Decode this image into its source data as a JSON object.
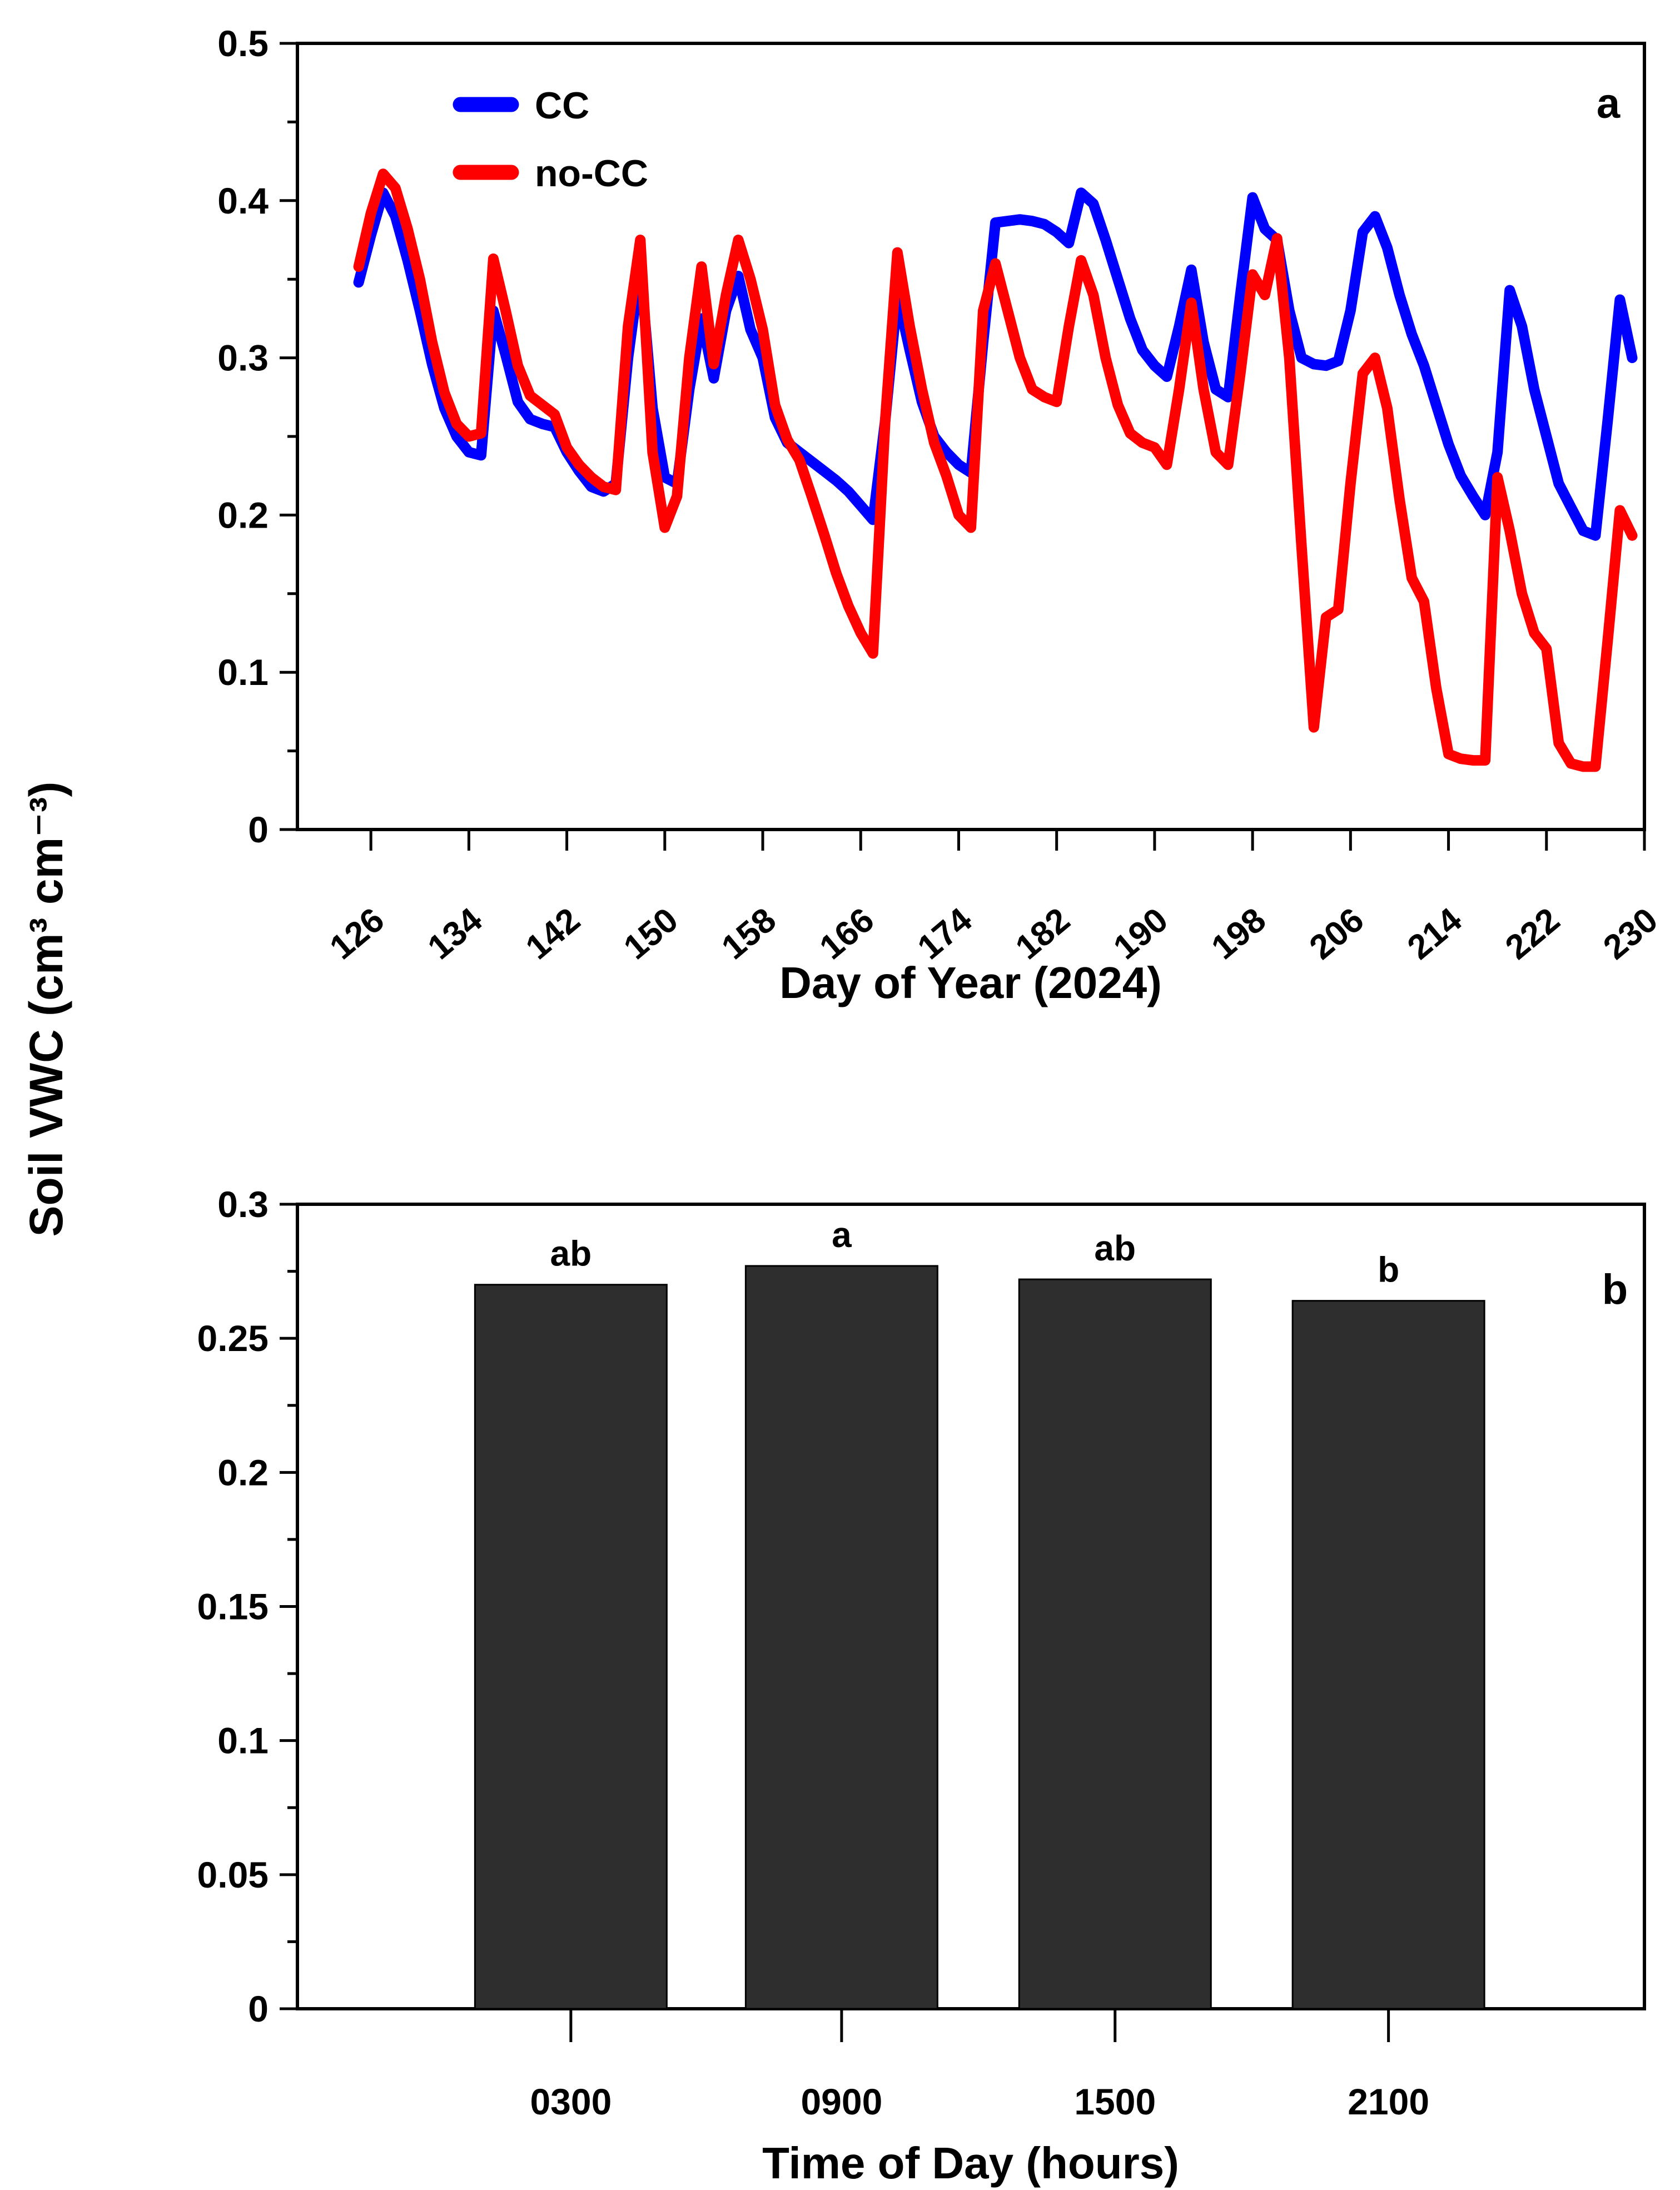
{
  "figure": {
    "background": "#ffffff",
    "axis_color": "#000000",
    "ylabel_shared": "Soil VWC (cm³ cm⁻³)"
  },
  "chart_data": [
    {
      "panel_label": "a",
      "type": "line",
      "xlabel": "Day of Year (2024)",
      "xlim": [
        120,
        230
      ],
      "ylim": [
        0,
        0.5
      ],
      "xticks": [
        126,
        134,
        142,
        150,
        158,
        166,
        174,
        182,
        190,
        198,
        206,
        214,
        222,
        230
      ],
      "ytick_values": [
        0,
        0.1,
        0.2,
        0.3,
        0.4,
        0.5
      ],
      "ytick_labels": [
        "0",
        "0.1",
        "0.2",
        "0.3",
        "0.4",
        "0.5"
      ],
      "yminor_step": 0.05,
      "legend_position": "top-left-inside",
      "series": [
        {
          "name": "CC",
          "color": "#0000ff",
          "x": [
            125,
            126,
            127,
            128,
            129,
            130,
            131,
            132,
            133,
            134,
            135,
            136,
            137,
            138,
            139,
            140,
            141,
            142,
            143,
            144,
            145,
            146,
            147,
            148,
            149,
            150,
            151,
            152,
            153,
            154,
            155,
            156,
            157,
            158,
            159,
            160,
            161,
            162,
            163,
            164,
            165,
            166,
            167,
            168,
            169,
            170,
            171,
            172,
            173,
            174,
            175,
            176,
            177,
            178,
            179,
            180,
            181,
            182,
            183,
            184,
            185,
            186,
            187,
            188,
            189,
            190,
            191,
            192,
            193,
            194,
            195,
            196,
            197,
            198,
            199,
            200,
            201,
            202,
            203,
            204,
            205,
            206,
            207,
            208,
            209,
            210,
            211,
            212,
            213,
            214,
            215,
            216,
            217,
            218,
            219,
            220,
            221,
            222,
            223,
            224,
            225,
            226,
            227,
            228,
            229
          ],
          "y": [
            0.348,
            0.378,
            0.405,
            0.39,
            0.362,
            0.33,
            0.296,
            0.268,
            0.25,
            0.24,
            0.238,
            0.33,
            0.302,
            0.272,
            0.261,
            0.258,
            0.256,
            0.24,
            0.228,
            0.218,
            0.215,
            0.22,
            0.3,
            0.358,
            0.268,
            0.224,
            0.22,
            0.28,
            0.325,
            0.287,
            0.33,
            0.352,
            0.318,
            0.3,
            0.262,
            0.246,
            0.24,
            0.234,
            0.228,
            0.222,
            0.215,
            0.206,
            0.197,
            0.26,
            0.34,
            0.305,
            0.272,
            0.25,
            0.24,
            0.232,
            0.227,
            0.31,
            0.386,
            0.387,
            0.388,
            0.387,
            0.385,
            0.38,
            0.373,
            0.405,
            0.398,
            0.375,
            0.35,
            0.325,
            0.305,
            0.295,
            0.288,
            0.32,
            0.356,
            0.31,
            0.28,
            0.275,
            0.34,
            0.402,
            0.382,
            0.375,
            0.33,
            0.3,
            0.296,
            0.295,
            0.298,
            0.33,
            0.38,
            0.39,
            0.37,
            0.34,
            0.315,
            0.295,
            0.27,
            0.245,
            0.225,
            0.212,
            0.2,
            0.24,
            0.343,
            0.32,
            0.28,
            0.25,
            0.22,
            0.205,
            0.19,
            0.187,
            0.26,
            0.337,
            0.3
          ]
        },
        {
          "name": "no-CC",
          "color": "#ff0000",
          "x": [
            125,
            126,
            127,
            128,
            129,
            130,
            131,
            132,
            133,
            134,
            135,
            136,
            137,
            138,
            139,
            140,
            141,
            142,
            143,
            144,
            145,
            146,
            147,
            148,
            149,
            150,
            151,
            152,
            153,
            154,
            155,
            156,
            157,
            158,
            159,
            160,
            161,
            162,
            163,
            164,
            165,
            166,
            167,
            168,
            169,
            170,
            171,
            172,
            173,
            174,
            175,
            176,
            177,
            178,
            179,
            180,
            181,
            182,
            183,
            184,
            185,
            186,
            187,
            188,
            189,
            190,
            191,
            192,
            193,
            194,
            195,
            196,
            197,
            198,
            199,
            200,
            201,
            202,
            203,
            204,
            205,
            206,
            207,
            208,
            209,
            210,
            211,
            212,
            213,
            214,
            215,
            216,
            217,
            218,
            219,
            220,
            221,
            222,
            223,
            224,
            225,
            226,
            227,
            228,
            229
          ],
          "y": [
            0.358,
            0.392,
            0.417,
            0.408,
            0.382,
            0.35,
            0.31,
            0.278,
            0.258,
            0.25,
            0.252,
            0.363,
            0.33,
            0.295,
            0.276,
            0.27,
            0.264,
            0.243,
            0.232,
            0.224,
            0.218,
            0.216,
            0.32,
            0.375,
            0.24,
            0.192,
            0.212,
            0.3,
            0.358,
            0.296,
            0.34,
            0.375,
            0.35,
            0.318,
            0.27,
            0.248,
            0.235,
            0.212,
            0.188,
            0.163,
            0.142,
            0.125,
            0.112,
            0.26,
            0.367,
            0.32,
            0.28,
            0.246,
            0.225,
            0.2,
            0.192,
            0.33,
            0.36,
            0.33,
            0.3,
            0.28,
            0.275,
            0.272,
            0.32,
            0.362,
            0.34,
            0.3,
            0.27,
            0.252,
            0.246,
            0.243,
            0.232,
            0.28,
            0.335,
            0.28,
            0.24,
            0.232,
            0.29,
            0.353,
            0.34,
            0.376,
            0.3,
            0.18,
            0.065,
            0.135,
            0.14,
            0.22,
            0.29,
            0.3,
            0.268,
            0.21,
            0.16,
            0.145,
            0.09,
            0.048,
            0.045,
            0.044,
            0.044,
            0.224,
            0.19,
            0.15,
            0.125,
            0.115,
            0.055,
            0.042,
            0.04,
            0.04,
            0.12,
            0.203,
            0.187
          ]
        }
      ]
    },
    {
      "panel_label": "b",
      "type": "bar",
      "xlabel": "Time of Day (hours)",
      "categories": [
        "0300",
        "0900",
        "1500",
        "2100"
      ],
      "values": [
        0.27,
        0.277,
        0.272,
        0.264
      ],
      "sig_letters": [
        "ab",
        "a",
        "ab",
        "b"
      ],
      "ylim": [
        0,
        0.3
      ],
      "ytick_values": [
        0,
        0.05,
        0.1,
        0.15,
        0.2,
        0.25,
        0.3
      ],
      "ytick_labels": [
        "0",
        "0.05",
        "0.1",
        "0.15",
        "0.2",
        "0.25",
        "0.3"
      ],
      "yminor_step": 0.025,
      "bar_color": "#2e2e2e",
      "bar_outline": "#000000"
    }
  ]
}
